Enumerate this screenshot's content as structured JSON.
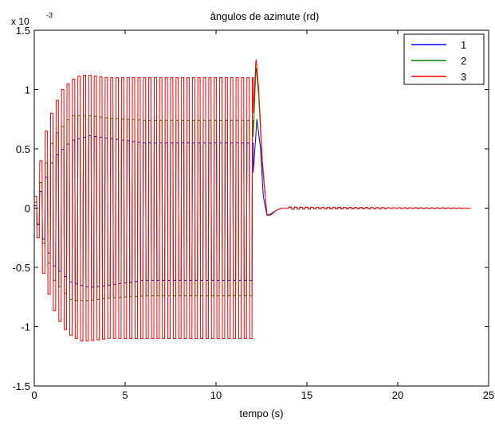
{
  "chart_data": {
    "type": "line",
    "title": "ângulos de azimute (rd)",
    "xlabel": "tempo (s)",
    "ylabel": "",
    "y_exponent_label": "x 10",
    "y_exponent_power": "-3",
    "xlim": [
      0,
      25
    ],
    "ylim": [
      -1.5,
      1.5
    ],
    "x_ticks": [
      0,
      5,
      10,
      15,
      20,
      25
    ],
    "x_tick_labels": [
      "0",
      "5",
      "10",
      "15",
      "20",
      "25"
    ],
    "y_ticks": [
      -1.5,
      -1,
      -0.5,
      0,
      0.5,
      1,
      1.5
    ],
    "y_tick_labels": [
      "-1.5",
      "-1",
      "-0.5",
      "0",
      "0.5",
      "1",
      "1.5"
    ],
    "y_units_scale": 0.001,
    "grid": false,
    "legend_position": "top-right",
    "osc_period_s": 0.3,
    "switch_time_s": 12.05,
    "end_time_s": 24,
    "series": [
      {
        "name": "1",
        "color": "#0000ff",
        "envelope_t": [
          0,
          1,
          2,
          3,
          4,
          5,
          6,
          8,
          10,
          12.05
        ],
        "envelope_amp": [
          0.05,
          0.45,
          0.6,
          0.64,
          0.62,
          0.6,
          0.58,
          0.58,
          0.58,
          0.58
        ],
        "offset": -0.03,
        "transient_t": [
          12.05,
          12.25,
          12.45,
          12.6,
          12.8,
          13.0,
          13.3,
          13.6,
          14.0,
          24
        ],
        "transient_v": [
          0.3,
          0.75,
          0.5,
          0.1,
          -0.06,
          -0.05,
          -0.02,
          0.0,
          0.0,
          0.0
        ]
      },
      {
        "name": "2",
        "color": "#008000",
        "envelope_t": [
          0,
          1,
          2,
          3,
          4,
          5,
          6,
          8,
          10,
          12.05
        ],
        "envelope_amp": [
          0.05,
          0.6,
          0.78,
          0.78,
          0.76,
          0.75,
          0.74,
          0.74,
          0.74,
          0.74
        ],
        "offset": 0.0,
        "transient_t": [
          12.05,
          12.2,
          12.35,
          12.55,
          12.8,
          13.0,
          13.3,
          13.6,
          14.0,
          24
        ],
        "transient_v": [
          0.6,
          1.2,
          0.95,
          0.35,
          -0.05,
          -0.06,
          -0.02,
          0.0,
          0.0,
          0.0
        ]
      },
      {
        "name": "3",
        "color": "#ff0000",
        "envelope_t": [
          0,
          0.5,
          1,
          1.5,
          2,
          2.5,
          3,
          4,
          6,
          8,
          10,
          12.05
        ],
        "envelope_amp": [
          0.1,
          0.6,
          0.85,
          1.0,
          1.08,
          1.12,
          1.12,
          1.1,
          1.1,
          1.1,
          1.1,
          1.1
        ],
        "offset": 0.0,
        "transient_t": [
          12.05,
          12.2,
          12.35,
          12.55,
          12.8,
          13.0,
          13.3,
          13.6,
          14.0,
          24
        ],
        "transient_v": [
          0.8,
          1.27,
          1.0,
          0.4,
          -0.06,
          -0.06,
          -0.02,
          0.0,
          0.0,
          0.0
        ]
      }
    ]
  }
}
